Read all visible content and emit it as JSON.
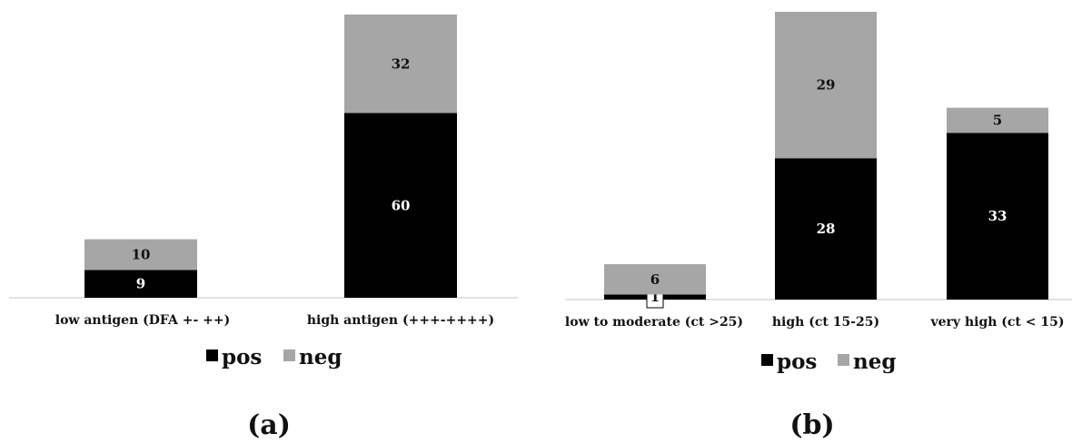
{
  "colors": {
    "pos": "#000000",
    "neg": "#a6a6a6",
    "axis": "#d9d9d9"
  },
  "chart_data": [
    {
      "type": "bar",
      "stacked": true,
      "panel_label": "(a)",
      "categories": [
        "low antigen (DFA +- ++)",
        "high antigen (+++-++++)"
      ],
      "series": [
        {
          "name": "pos",
          "values": [
            9,
            60
          ]
        },
        {
          "name": "neg",
          "values": [
            10,
            32
          ]
        }
      ],
      "ylim": [
        0,
        92
      ],
      "grid": false,
      "legend": "bottom"
    },
    {
      "type": "bar",
      "stacked": true,
      "panel_label": "(b)",
      "categories": [
        "low to moderate (ct >25)",
        "high (ct 15-25)",
        "very high (ct < 15)"
      ],
      "series": [
        {
          "name": "pos",
          "values": [
            1,
            28,
            33
          ]
        },
        {
          "name": "neg",
          "values": [
            6,
            29,
            5
          ]
        }
      ],
      "ylim": [
        0,
        57
      ],
      "grid": false,
      "legend": "bottom"
    }
  ]
}
